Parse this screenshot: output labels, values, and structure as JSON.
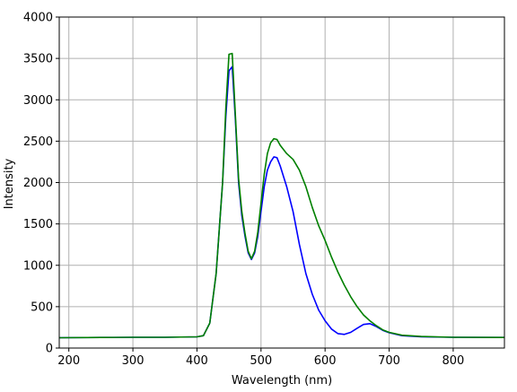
{
  "chart_data": {
    "type": "line",
    "title": "",
    "xlabel": "Wavelength (nm)",
    "ylabel": "Intensity",
    "xlim": [
      185,
      880
    ],
    "ylim": [
      0,
      4000
    ],
    "grid": true,
    "xticks": [
      200,
      300,
      400,
      500,
      600,
      700,
      800
    ],
    "yticks": [
      0,
      500,
      1000,
      1500,
      2000,
      2500,
      3000,
      3500,
      4000
    ],
    "series": [
      {
        "color": "#0000ff",
        "x": [
          185,
          250,
          300,
          350,
          400,
          410,
          420,
          430,
          440,
          445,
          450,
          455,
          460,
          465,
          470,
          475,
          480,
          485,
          490,
          495,
          500,
          505,
          510,
          515,
          520,
          525,
          530,
          540,
          550,
          560,
          570,
          580,
          590,
          600,
          610,
          620,
          630,
          640,
          650,
          660,
          670,
          680,
          690,
          700,
          720,
          750,
          800,
          880
        ],
        "y": [
          125,
          128,
          130,
          130,
          135,
          150,
          300,
          900,
          2000,
          2800,
          3350,
          3400,
          2750,
          2000,
          1600,
          1350,
          1150,
          1070,
          1150,
          1350,
          1650,
          1950,
          2150,
          2250,
          2310,
          2300,
          2200,
          1950,
          1650,
          1250,
          900,
          650,
          460,
          330,
          230,
          175,
          165,
          190,
          240,
          285,
          295,
          260,
          215,
          185,
          150,
          135,
          130,
          128
        ]
      },
      {
        "color": "#008000",
        "x": [
          185,
          250,
          300,
          350,
          400,
          410,
          420,
          430,
          440,
          445,
          450,
          455,
          460,
          465,
          470,
          475,
          480,
          485,
          490,
          495,
          500,
          505,
          510,
          515,
          520,
          525,
          530,
          540,
          550,
          560,
          570,
          580,
          590,
          600,
          610,
          620,
          630,
          640,
          650,
          660,
          670,
          680,
          690,
          700,
          720,
          750,
          800,
          880
        ],
        "y": [
          125,
          128,
          130,
          130,
          135,
          150,
          300,
          900,
          2000,
          2900,
          3550,
          3560,
          2800,
          2050,
          1650,
          1380,
          1170,
          1080,
          1170,
          1400,
          1750,
          2100,
          2350,
          2480,
          2530,
          2520,
          2450,
          2350,
          2280,
          2150,
          1950,
          1700,
          1480,
          1300,
          1100,
          920,
          760,
          620,
          500,
          400,
          330,
          270,
          220,
          190,
          155,
          140,
          130,
          128
        ]
      }
    ]
  }
}
